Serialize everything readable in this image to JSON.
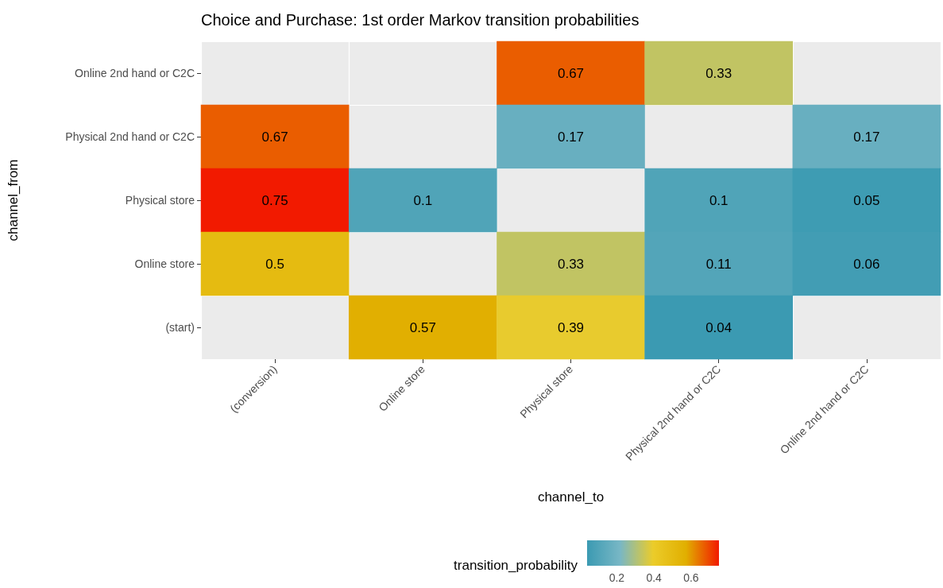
{
  "chart_data": {
    "type": "heatmap",
    "title": "Choice and Purchase: 1st order Markov transition probabilities",
    "xlabel": "channel_to",
    "ylabel": "channel_from",
    "legend_title": "transition_probability",
    "categories": [
      "(conversion)",
      "Online store",
      "Physical store",
      "Physical 2nd hand or C2C",
      "Online 2nd hand or C2C"
    ],
    "y_categories": [
      "Online 2nd hand or C2C",
      "Physical 2nd hand or C2C",
      "Physical store",
      "Online store",
      "(start)"
    ],
    "cells": [
      [
        null,
        null,
        0.67,
        0.33,
        null
      ],
      [
        0.67,
        null,
        0.17,
        null,
        0.17
      ],
      [
        0.75,
        0.1,
        null,
        0.1,
        0.05
      ],
      [
        0.5,
        null,
        0.33,
        0.11,
        0.06
      ],
      [
        null,
        0.57,
        0.39,
        0.04,
        null
      ]
    ],
    "clim": [
      0.04,
      0.75
    ],
    "cticks": [
      0.2,
      0.4,
      0.6
    ],
    "data_labels": true,
    "grid": true
  }
}
